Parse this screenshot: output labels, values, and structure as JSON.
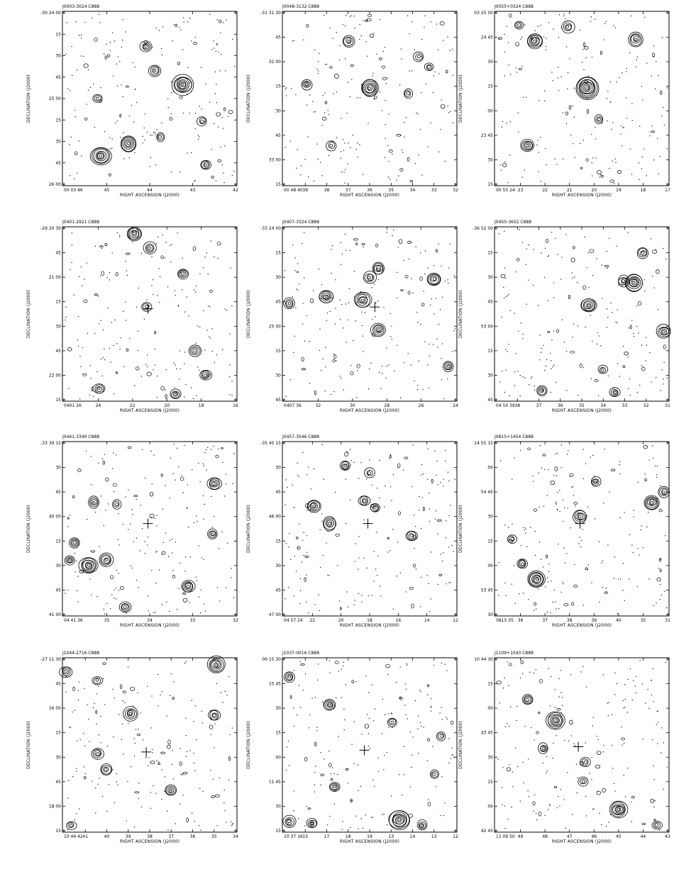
{
  "figure": {
    "x_axis_label": "RIGHT ASCENSION (J2000)",
    "y_axis_label": "DECLINATION (J2000)"
  },
  "panels": [
    {
      "title": "J0003-3024 C888",
      "y_ticks": [
        "-30 24 00",
        "15",
        "30",
        "45",
        "25 00",
        "15",
        "30",
        "45",
        "26 00"
      ],
      "x_ticks": [
        "00 03 46",
        "45",
        "44",
        "43",
        "42"
      ],
      "sources": [
        [
          0.22,
          0.83,
          1.3
        ],
        [
          0.38,
          0.76,
          1.1
        ],
        [
          0.69,
          0.42,
          1.4
        ],
        [
          0.53,
          0.34,
          0.6
        ],
        [
          0.48,
          0.2,
          0.5
        ],
        [
          0.82,
          0.88,
          0.4
        ],
        [
          0.2,
          0.5,
          0.35
        ],
        [
          0.56,
          0.72,
          0.3
        ],
        [
          0.8,
          0.63,
          0.3
        ]
      ],
      "cross": null
    },
    {
      "title": "J0048-3132 C888",
      "y_ticks": [
        "-31 31 30",
        "45",
        "32 00",
        "15",
        "30",
        "45",
        "33 00",
        "15"
      ],
      "x_ticks": [
        "00 48 40",
        "39",
        "38",
        "37",
        "36",
        "35",
        "34",
        "33",
        "32"
      ],
      "sources": [
        [
          0.5,
          0.44,
          1.3
        ],
        [
          0.38,
          0.17,
          0.6
        ],
        [
          0.78,
          0.26,
          0.35
        ],
        [
          0.84,
          0.32,
          0.3
        ],
        [
          0.14,
          0.42,
          0.4
        ],
        [
          0.28,
          0.77,
          0.35
        ],
        [
          0.72,
          0.47,
          0.35
        ]
      ],
      "cross": null
    },
    {
      "title": "J0055+0324 C888",
      "y_ticks": [
        "03 25 00",
        "24 45",
        "30",
        "15",
        "00",
        "23 45",
        "30",
        "15"
      ],
      "x_ticks": [
        "00 55 24",
        "23",
        "22",
        "21",
        "20",
        "19",
        "18",
        "17"
      ],
      "sources": [
        [
          0.53,
          0.44,
          1.8
        ],
        [
          0.23,
          0.17,
          1.0
        ],
        [
          0.42,
          0.09,
          0.6
        ],
        [
          0.81,
          0.16,
          0.8
        ],
        [
          0.19,
          0.77,
          0.7
        ],
        [
          0.14,
          0.08,
          0.3
        ],
        [
          0.6,
          0.62,
          0.3
        ]
      ],
      "cross": null
    },
    {
      "title": "J0401-2921 C888",
      "y_ticks": [
        "-29 20 30",
        "45",
        "21 00",
        "15",
        "30",
        "45",
        "22 00",
        "15"
      ],
      "x_ticks": [
        "0401 26",
        "24",
        "22",
        "20",
        "18",
        "16"
      ],
      "sources": [
        [
          0.41,
          0.04,
          1.0
        ],
        [
          0.5,
          0.12,
          0.6
        ],
        [
          0.76,
          0.71,
          0.6
        ],
        [
          0.82,
          0.85,
          0.5
        ],
        [
          0.69,
          0.27,
          0.5
        ],
        [
          0.21,
          0.93,
          0.5
        ],
        [
          0.65,
          0.96,
          0.4
        ],
        [
          0.48,
          0.46,
          0.35
        ]
      ],
      "cross": [
        0.49,
        0.47
      ]
    },
    {
      "title": "J0407-3324 C888",
      "y_ticks": [
        "-33 24 00",
        "15",
        "30",
        "45",
        "25 00",
        "15",
        "30",
        "45"
      ],
      "x_ticks": [
        "0407 36",
        "32",
        "30",
        "28",
        "26",
        "24"
      ],
      "sources": [
        [
          0.46,
          0.42,
          1.0
        ],
        [
          0.25,
          0.4,
          0.9
        ],
        [
          0.87,
          0.3,
          0.8
        ],
        [
          0.55,
          0.59,
          0.8
        ],
        [
          0.55,
          0.24,
          0.7
        ],
        [
          0.5,
          0.29,
          0.6
        ],
        [
          0.04,
          0.44,
          0.5
        ],
        [
          0.95,
          0.8,
          0.4
        ]
      ],
      "cross": [
        0.53,
        0.46
      ]
    },
    {
      "title": "J0450-3652 C888",
      "y_ticks": [
        "-36 52 00",
        "15",
        "30",
        "45",
        "53 00",
        "15",
        "30",
        "45"
      ],
      "x_ticks": [
        "04 50 39",
        "38",
        "37",
        "36",
        "35",
        "34",
        "33",
        "32",
        "31"
      ],
      "sources": [
        [
          0.8,
          0.32,
          1.3
        ],
        [
          0.54,
          0.45,
          0.9
        ],
        [
          0.97,
          0.6,
          0.8
        ],
        [
          0.74,
          0.31,
          0.6
        ],
        [
          0.85,
          0.15,
          0.5
        ],
        [
          0.69,
          0.95,
          0.4
        ],
        [
          0.27,
          0.94,
          0.4
        ],
        [
          0.62,
          0.82,
          0.3
        ]
      ],
      "cross": null
    },
    {
      "title": "J0441-3340 C888",
      "y_ticks": [
        "-33 39 15",
        "30",
        "45",
        "40 00",
        "15",
        "30",
        "45",
        "41 00"
      ],
      "x_ticks": [
        "04 41 36",
        "35",
        "34",
        "33",
        "32"
      ],
      "sources": [
        [
          0.15,
          0.71,
          1.2
        ],
        [
          0.25,
          0.68,
          0.8
        ],
        [
          0.72,
          0.83,
          0.8
        ],
        [
          0.87,
          0.24,
          0.8
        ],
        [
          0.18,
          0.35,
          0.6
        ],
        [
          0.36,
          0.95,
          0.6
        ],
        [
          0.07,
          0.58,
          0.5
        ],
        [
          0.04,
          0.68,
          0.4
        ],
        [
          0.86,
          0.53,
          0.4
        ],
        [
          0.31,
          0.36,
          0.35
        ]
      ],
      "cross": [
        0.49,
        0.47
      ]
    },
    {
      "title": "J0457-3546 C888",
      "y_ticks": [
        "-35 45 15",
        "30",
        "45",
        "46 00",
        "15",
        "30",
        "45",
        "47 00"
      ],
      "x_ticks": [
        "04 57 24",
        "22",
        "20",
        "18",
        "16",
        "14",
        "12"
      ],
      "sources": [
        [
          0.18,
          0.37,
          0.8
        ],
        [
          0.27,
          0.47,
          0.8
        ],
        [
          0.47,
          0.34,
          0.5
        ],
        [
          0.36,
          0.14,
          0.5
        ],
        [
          0.74,
          0.54,
          0.5
        ],
        [
          0.5,
          0.18,
          0.35
        ],
        [
          0.53,
          0.38,
          0.4
        ]
      ],
      "cross": [
        0.49,
        0.47
      ]
    },
    {
      "title": "J0815+1454 C888",
      "y_ticks": [
        "14 55 15",
        "00",
        "54 45",
        "30",
        "15",
        "00",
        "53 45",
        "30"
      ],
      "x_ticks": [
        "0815 35",
        "36",
        "37",
        "38",
        "39",
        "40",
        "35",
        "31"
      ],
      "sources": [
        [
          0.24,
          0.79,
          1.2
        ],
        [
          0.9,
          0.35,
          1.0
        ],
        [
          0.49,
          0.43,
          0.8
        ],
        [
          0.97,
          0.29,
          0.5
        ],
        [
          0.58,
          0.23,
          0.4
        ],
        [
          0.16,
          0.7,
          0.5
        ],
        [
          0.1,
          0.56,
          0.35
        ]
      ],
      "cross": [
        0.49,
        0.47
      ]
    },
    {
      "title": "J1044-2716 C888",
      "y_ticks": [
        "-27 11 30",
        "45",
        "16 00",
        "15",
        "30",
        "45",
        "18 00",
        "15"
      ],
      "x_ticks": [
        "10 44 42",
        "41",
        "40",
        "39",
        "38",
        "37",
        "36",
        "35",
        "34"
      ],
      "sources": [
        [
          0.88,
          0.04,
          1.0
        ],
        [
          0.39,
          0.32,
          0.8
        ],
        [
          0.2,
          0.55,
          0.6
        ],
        [
          0.87,
          0.33,
          0.6
        ],
        [
          0.62,
          0.76,
          0.6
        ],
        [
          0.25,
          0.64,
          0.6
        ],
        [
          0.02,
          0.08,
          0.6
        ],
        [
          0.2,
          0.13,
          0.35
        ],
        [
          0.05,
          0.96,
          0.35
        ]
      ],
      "cross": [
        0.48,
        0.54
      ]
    },
    {
      "title": "J1037-0016 C888",
      "y_ticks": [
        "00 15 30",
        "15 45",
        "30",
        "15",
        "00",
        "11 45",
        "30",
        "15"
      ],
      "x_ticks": [
        "10 37 16",
        "15",
        "17",
        "18",
        "19",
        "13",
        "14",
        "13",
        "12"
      ],
      "sources": [
        [
          0.67,
          0.93,
          1.5
        ],
        [
          0.27,
          0.27,
          0.7
        ],
        [
          0.04,
          0.94,
          0.6
        ],
        [
          0.17,
          0.95,
          0.4
        ],
        [
          0.3,
          0.74,
          0.4
        ],
        [
          0.8,
          0.96,
          0.4
        ],
        [
          0.04,
          0.11,
          0.4
        ],
        [
          0.63,
          0.37,
          0.35
        ],
        [
          0.87,
          0.67,
          0.35
        ],
        [
          0.91,
          0.45,
          0.3
        ]
      ],
      "cross": [
        0.47,
        0.53
      ]
    },
    {
      "title": "J1109+1043 C888",
      "y_ticks": [
        "10 44 30",
        "15",
        "00",
        "43 45",
        "30",
        "15",
        "00",
        "42 45"
      ],
      "x_ticks": [
        "11 09 50",
        "49",
        "48",
        "47",
        "46",
        "45",
        "44",
        "43"
      ],
      "sources": [
        [
          0.35,
          0.36,
          1.3
        ],
        [
          0.71,
          0.87,
          1.2
        ],
        [
          0.19,
          0.24,
          0.6
        ],
        [
          0.28,
          0.52,
          0.45
        ],
        [
          0.52,
          0.6,
          0.35
        ],
        [
          0.51,
          0.71,
          0.35
        ],
        [
          0.93,
          0.96,
          0.35
        ]
      ],
      "cross": [
        0.48,
        0.51
      ]
    }
  ]
}
